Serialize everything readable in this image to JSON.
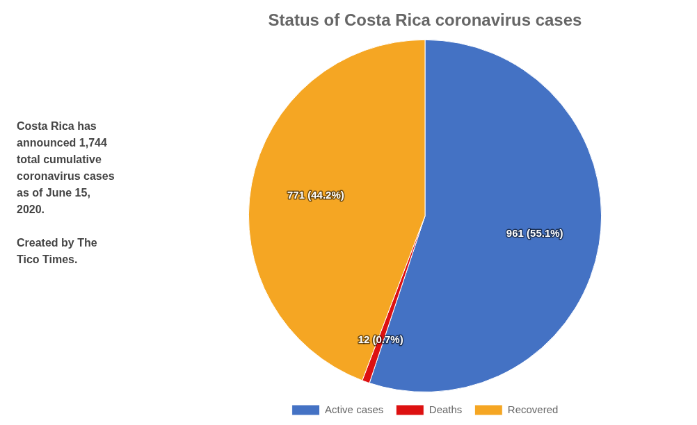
{
  "chart_data": {
    "type": "pie",
    "title": "Status of Costa Rica coronavirus cases",
    "categories": [
      "Active cases",
      "Deaths",
      "Recovered"
    ],
    "values": [
      961,
      12,
      771
    ],
    "value_labels": [
      "961 (55.1%)",
      "12 (0.7%)",
      "771 (44.2%)"
    ],
    "colors": [
      "#4472c4",
      "#dd1111",
      "#f5a623"
    ],
    "annotation": "Costa Rica has\nannounced 1,744\ntotal cumulative\ncoronavirus cases\nas of June 15,\n2020.\n\nCreated by The\nTico Times.",
    "legend": "bottom",
    "data_labels": true
  }
}
